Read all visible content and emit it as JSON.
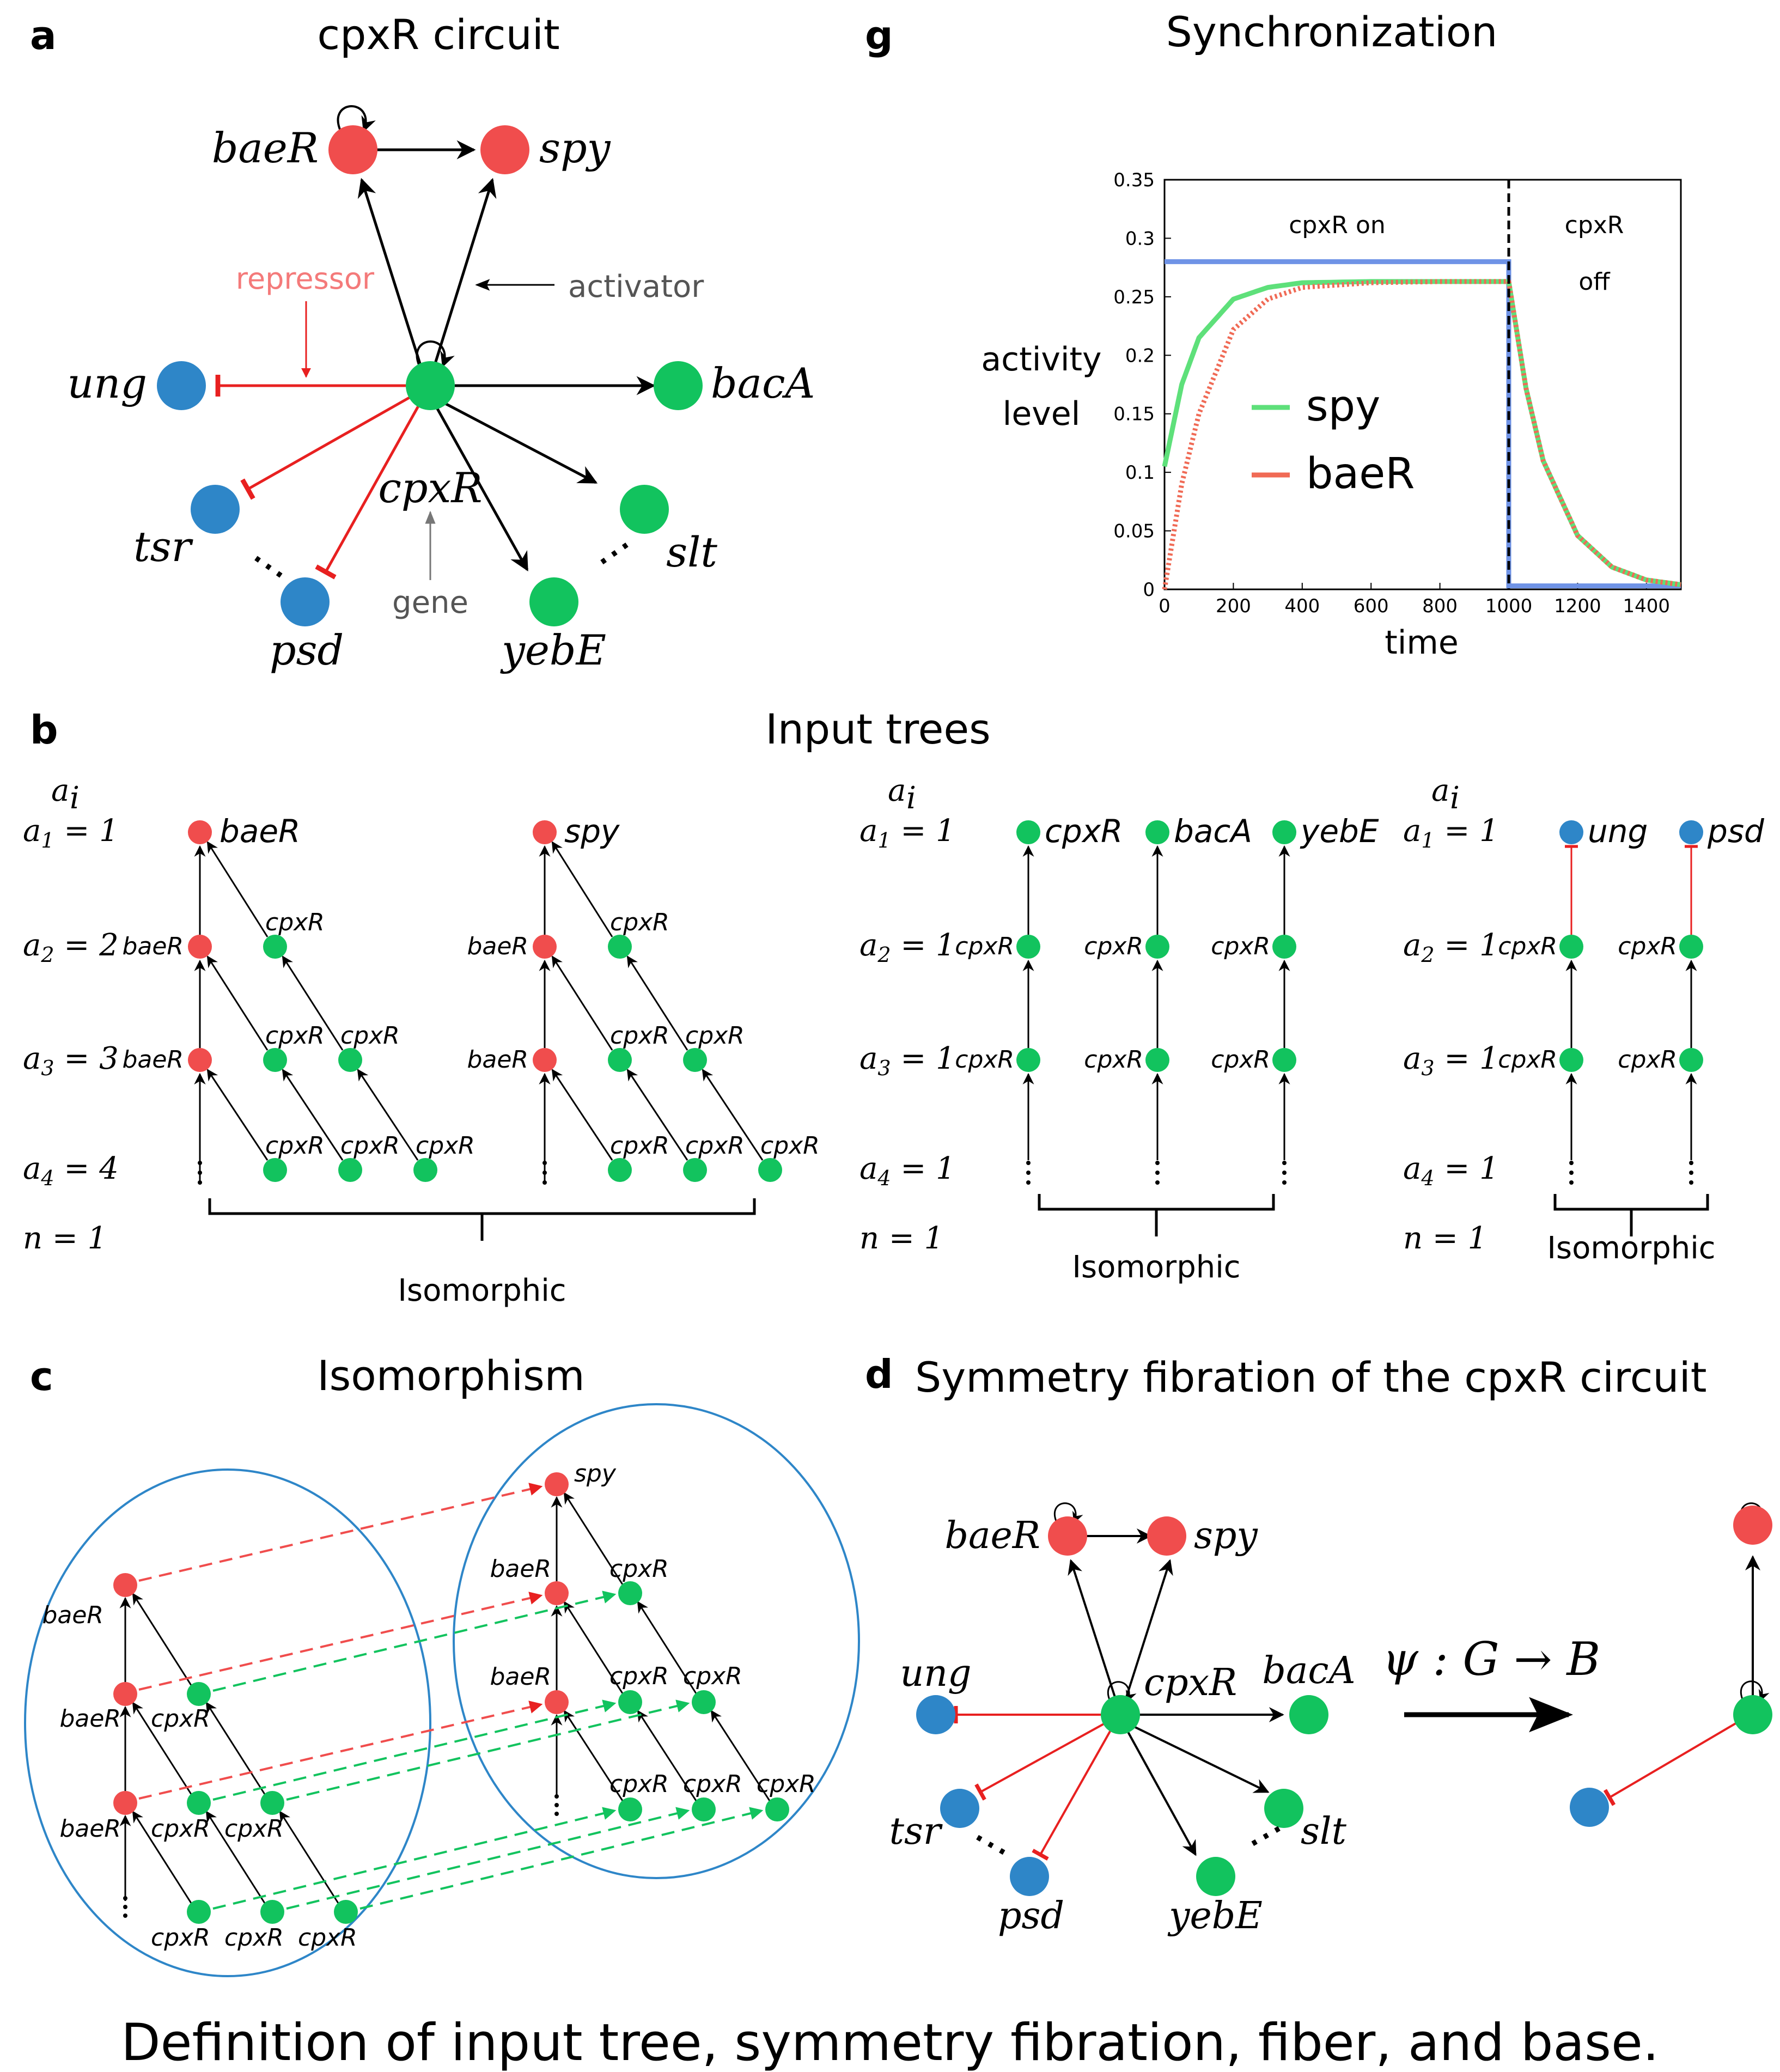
{
  "caption": "Definition of input tree, symmetry fibration, fiber, and base.",
  "colors": {
    "red": "#f04d4d",
    "green": "#12c35e",
    "blue": "#2e86c8",
    "activator": "#000000",
    "repressor": "#e82020"
  },
  "panel_a": {
    "letter": "a",
    "title": "cpxR circuit",
    "nodes": {
      "baeR": "baeR",
      "spy": "spy",
      "ung": "ung",
      "bacA": "bacA",
      "cpxR": "cpxR",
      "tsr": "tsr",
      "psd": "psd",
      "slt": "slt",
      "yebE": "yebE"
    },
    "annotations": {
      "repressor": "repressor",
      "activator": "activator",
      "gene": "gene"
    },
    "ellipsis": "..."
  },
  "panel_b": {
    "letter": "b",
    "title": "Input trees",
    "a_i": "a",
    "a_i_sub": "i",
    "groups": [
      {
        "rows": [
          "a1 = 1",
          "a2 = 2",
          "a3 = 3",
          "a4 = 4"
        ],
        "n_label": "n = 1",
        "roots": [
          "baeR",
          "spy"
        ],
        "tree_label": "Isomorphic"
      },
      {
        "rows": [
          "a1 = 1",
          "a2 = 1",
          "a3 = 1",
          "a4 = 1"
        ],
        "n_label": "n = 1",
        "roots": [
          "cpxR",
          "bacA",
          "yebE"
        ],
        "tree_label": "Isomorphic"
      },
      {
        "rows": [
          "a1 = 1",
          "a2 = 1",
          "a3 = 1",
          "a4 = 1"
        ],
        "n_label": "n = 1",
        "roots": [
          "ung",
          "psd"
        ],
        "tree_label": "Isomorphic"
      }
    ],
    "node_labels": {
      "baeR": "baeR",
      "cpxR": "cpxR"
    }
  },
  "panel_c": {
    "letter": "c",
    "title": "Isomorphism",
    "labels": {
      "baeR": "baeR",
      "spy": "spy",
      "cpxR": "cpxR"
    }
  },
  "panel_d": {
    "letter": "d",
    "title": "Symmetry fibration of the cpxR circuit",
    "map_label": "ψ : G → B",
    "nodes": {
      "baeR": "baeR",
      "spy": "spy",
      "ung": "ung",
      "bacA": "bacA",
      "cpxR": "cpxR",
      "tsr": "tsr",
      "psd": "psd",
      "slt": "slt",
      "yebE": "yebE"
    }
  },
  "panel_g": {
    "letter": "g",
    "title": "Synchronization",
    "chart_data": {
      "type": "line",
      "title": "Synchronization",
      "xlabel": "time",
      "ylabel": "activity level",
      "xlim": [
        0,
        1500
      ],
      "ylim": [
        0,
        0.35
      ],
      "xticks": [
        0,
        200,
        400,
        600,
        800,
        1000,
        1200,
        1400
      ],
      "yticks": [
        0,
        0.05,
        0.1,
        0.15,
        0.2,
        0.25,
        0.3,
        0.35
      ],
      "annotations": [
        "cpxR on",
        "cpxR",
        "off"
      ],
      "switch_time": 1000,
      "series": [
        {
          "name": "spy",
          "color": "#5ee07a",
          "style": "solid",
          "x": [
            0,
            50,
            100,
            200,
            300,
            400,
            600,
            800,
            1000,
            1050,
            1100,
            1200,
            1300,
            1400,
            1500
          ],
          "y": [
            0.105,
            0.175,
            0.215,
            0.248,
            0.258,
            0.262,
            0.263,
            0.263,
            0.263,
            0.172,
            0.11,
            0.046,
            0.019,
            0.008,
            0.004
          ]
        },
        {
          "name": "baeR",
          "color": "#f06a55",
          "style": "dotted",
          "x": [
            0,
            50,
            100,
            200,
            300,
            400,
            600,
            800,
            1000,
            1050,
            1100,
            1200,
            1300,
            1400,
            1500
          ],
          "y": [
            0,
            0.09,
            0.15,
            0.222,
            0.248,
            0.258,
            0.262,
            0.263,
            0.263,
            0.172,
            0.11,
            0.046,
            0.019,
            0.008,
            0.004
          ]
        },
        {
          "name": "",
          "color": "#6f93e6",
          "style": "solid",
          "x": [
            0,
            1000,
            1000,
            1500
          ],
          "y": [
            0.28,
            0.28,
            0.003,
            0.003
          ]
        }
      ]
    }
  }
}
